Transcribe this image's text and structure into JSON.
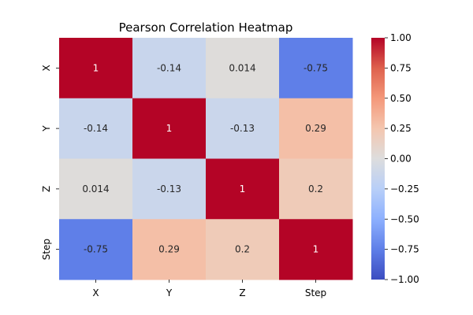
{
  "chart_data": {
    "type": "heatmap",
    "title": "Pearson Correlation Heatmap",
    "xlabel": "",
    "ylabel": "",
    "x_categories": [
      "X",
      "Y",
      "Z",
      "Step"
    ],
    "y_categories": [
      "X",
      "Y",
      "Z",
      "Step"
    ],
    "values": [
      [
        1,
        -0.14,
        0.014,
        -0.75
      ],
      [
        -0.14,
        1,
        -0.13,
        0.29
      ],
      [
        0.014,
        -0.13,
        1,
        0.2
      ],
      [
        -0.75,
        0.29,
        0.2,
        1
      ]
    ],
    "value_labels": [
      [
        "1",
        "-0.14",
        "0.014",
        "-0.75"
      ],
      [
        "-0.14",
        "1",
        "-0.13",
        "0.29"
      ],
      [
        "0.014",
        "-0.13",
        "1",
        "0.2"
      ],
      [
        "-0.75",
        "0.29",
        "0.2",
        "1"
      ]
    ],
    "colormap": "coolwarm",
    "vmin": -1.0,
    "vmax": 1.0,
    "colorbar": {
      "placement": "right",
      "tick_values": [
        1.0,
        0.75,
        0.5,
        0.25,
        0.0,
        -0.25,
        -0.5,
        -0.75,
        -1.0
      ],
      "tick_labels": [
        "1.00",
        "0.75",
        "0.50",
        "0.25",
        "0.00",
        "−0.25",
        "−0.50",
        "−0.75",
        "−1.00"
      ]
    },
    "grid": false
  }
}
